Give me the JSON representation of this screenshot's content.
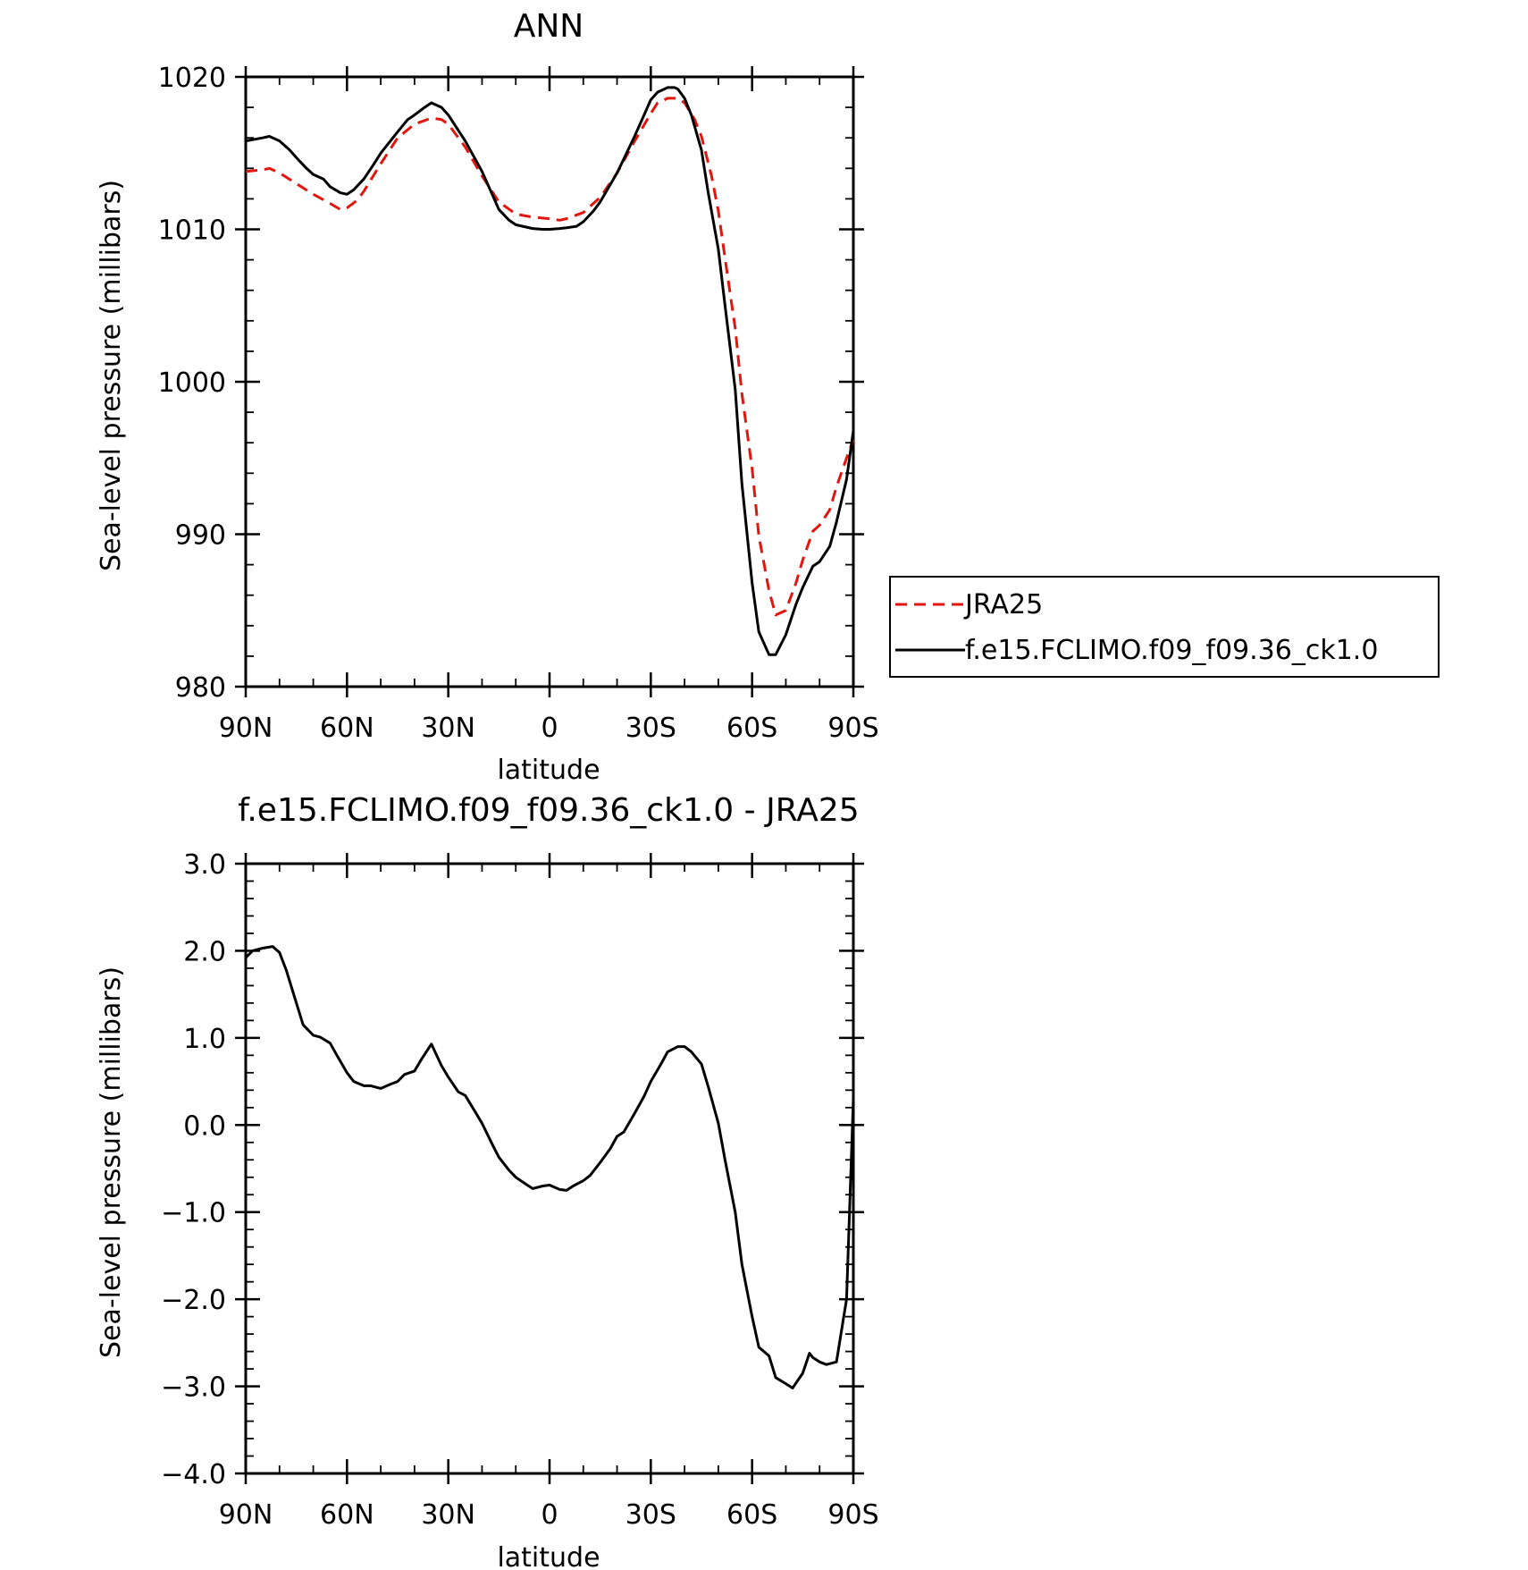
{
  "chart_data": [
    {
      "type": "line",
      "title": "ANN",
      "xlabel": "latitude",
      "ylabel": "Sea-level pressure (millibars)",
      "xlim": [
        90,
        -90
      ],
      "ylim": [
        980,
        1020
      ],
      "x_ticks": [
        {
          "value": 90,
          "label": "90N"
        },
        {
          "value": 60,
          "label": "60N"
        },
        {
          "value": 30,
          "label": "30N"
        },
        {
          "value": 0,
          "label": "0"
        },
        {
          "value": -30,
          "label": "30S"
        },
        {
          "value": -60,
          "label": "60S"
        },
        {
          "value": -90,
          "label": "90S"
        }
      ],
      "y_ticks": [
        {
          "value": 1020,
          "label": "1020"
        },
        {
          "value": 1010,
          "label": "1010"
        },
        {
          "value": 1000,
          "label": "1000"
        },
        {
          "value": 990,
          "label": "990"
        },
        {
          "value": 980,
          "label": "980"
        }
      ],
      "legend_position": "right",
      "series": [
        {
          "name": "JRA25",
          "color": "#e3150f",
          "dash": "dashed",
          "x": [
            90,
            85,
            83,
            80,
            75,
            70,
            65,
            62,
            60,
            57,
            55,
            50,
            45,
            40,
            35,
            32,
            30,
            25,
            20,
            15,
            10,
            5,
            0,
            -3,
            -5,
            -10,
            -15,
            -20,
            -25,
            -30,
            -32,
            -35,
            -38,
            -40,
            -43,
            -45,
            -48,
            -50,
            -52,
            -55,
            -57,
            -60,
            -62,
            -65,
            -67,
            -70,
            -73,
            -75,
            -78,
            -80,
            -83,
            -85,
            -88,
            -90
          ],
          "y": [
            1013.8,
            1013.9,
            1014.0,
            1013.7,
            1013.0,
            1012.3,
            1011.7,
            1011.3,
            1011.4,
            1011.9,
            1012.5,
            1014.3,
            1016.0,
            1016.9,
            1017.3,
            1017.2,
            1016.9,
            1015.4,
            1013.5,
            1011.8,
            1011.0,
            1010.8,
            1010.7,
            1010.6,
            1010.7,
            1011.1,
            1012.1,
            1013.7,
            1015.7,
            1017.6,
            1018.3,
            1018.6,
            1018.6,
            1018.3,
            1017.2,
            1016.1,
            1013.5,
            1011.2,
            1008.1,
            1003.5,
            999.2,
            994.3,
            989.9,
            986.3,
            984.7,
            985.0,
            986.8,
            988.3,
            990.2,
            990.6,
            991.6,
            993.1,
            995.0,
            996.2
          ]
        },
        {
          "name": "f.e15.FCLIMO.f09_f09.36_ck1.0",
          "color": "#000000",
          "dash": "solid",
          "x": [
            90,
            85,
            83,
            80,
            77,
            75,
            72,
            70,
            67,
            65,
            62,
            60,
            58,
            55,
            52,
            50,
            45,
            42,
            40,
            37,
            35,
            32,
            30,
            25,
            20,
            17,
            15,
            12,
            10,
            5,
            2,
            0,
            -3,
            -5,
            -8,
            -10,
            -13,
            -15,
            -20,
            -25,
            -28,
            -30,
            -32,
            -35,
            -37,
            -38,
            -40,
            -42,
            -45,
            -47,
            -50,
            -52,
            -55,
            -57,
            -60,
            -62,
            -65,
            -67,
            -70,
            -73,
            -75,
            -78,
            -80,
            -83,
            -85,
            -88,
            -90
          ],
          "y": [
            1015.8,
            1016.0,
            1016.1,
            1015.8,
            1015.2,
            1014.7,
            1014.0,
            1013.6,
            1013.3,
            1012.8,
            1012.4,
            1012.3,
            1012.6,
            1013.3,
            1014.3,
            1015.0,
            1016.4,
            1017.2,
            1017.5,
            1018.0,
            1018.3,
            1018.0,
            1017.5,
            1015.8,
            1013.8,
            1012.3,
            1011.3,
            1010.6,
            1010.3,
            1010.05,
            1010.0,
            1010.0,
            1010.05,
            1010.1,
            1010.2,
            1010.5,
            1011.2,
            1011.8,
            1013.7,
            1016.0,
            1017.5,
            1018.5,
            1019.0,
            1019.3,
            1019.3,
            1019.2,
            1018.6,
            1017.5,
            1015.2,
            1012.4,
            1008.7,
            1005.0,
            999.5,
            993.3,
            986.8,
            983.6,
            982.1,
            982.1,
            983.4,
            985.4,
            986.5,
            987.9,
            988.2,
            989.2,
            990.8,
            993.6,
            996.8
          ]
        }
      ]
    },
    {
      "type": "line",
      "title": "f.e15.FCLIMO.f09_f09.36_ck1.0 - JRA25",
      "xlabel": "latitude",
      "ylabel": "Sea-level pressure (millibars)",
      "xlim": [
        90,
        -90
      ],
      "ylim": [
        -4.0,
        3.0
      ],
      "x_ticks": [
        {
          "value": 90,
          "label": "90N"
        },
        {
          "value": 60,
          "label": "60N"
        },
        {
          "value": 30,
          "label": "30N"
        },
        {
          "value": 0,
          "label": "0"
        },
        {
          "value": -30,
          "label": "30S"
        },
        {
          "value": -60,
          "label": "60S"
        },
        {
          "value": -90,
          "label": "90S"
        }
      ],
      "y_ticks": [
        {
          "value": 3.0,
          "label": "3.0"
        },
        {
          "value": 2.0,
          "label": "2.0"
        },
        {
          "value": 1.0,
          "label": "1.0"
        },
        {
          "value": 0.0,
          "label": "0.0"
        },
        {
          "value": -1.0,
          "label": "−1.0"
        },
        {
          "value": -2.0,
          "label": "−2.0"
        },
        {
          "value": -3.0,
          "label": "−3.0"
        },
        {
          "value": -4.0,
          "label": "−4.0"
        }
      ],
      "series": [
        {
          "color": "#000000",
          "dash": "solid",
          "x": [
            90,
            88,
            85,
            82,
            80,
            78,
            75,
            73,
            70,
            68,
            65,
            63,
            60,
            58,
            55,
            53,
            50,
            47,
            45,
            43,
            40,
            38,
            35,
            32,
            30,
            27,
            25,
            22,
            20,
            17,
            15,
            12,
            10,
            7,
            5,
            2,
            0,
            -3,
            -5,
            -7,
            -10,
            -12,
            -15,
            -18,
            -20,
            -22,
            -25,
            -28,
            -30,
            -33,
            -35,
            -38,
            -40,
            -42,
            -45,
            -47,
            -50,
            -52,
            -55,
            -57,
            -60,
            -62,
            -65,
            -67,
            -70,
            -72,
            -75,
            -77,
            -78,
            -80,
            -82,
            -85,
            -88,
            -90
          ],
          "y": [
            1.92,
            2.0,
            2.03,
            2.05,
            1.98,
            1.78,
            1.4,
            1.15,
            1.03,
            1.01,
            0.94,
            0.8,
            0.6,
            0.5,
            0.45,
            0.45,
            0.42,
            0.47,
            0.5,
            0.58,
            0.62,
            0.75,
            0.93,
            0.68,
            0.55,
            0.38,
            0.34,
            0.15,
            0.02,
            -0.22,
            -0.37,
            -0.52,
            -0.6,
            -0.68,
            -0.73,
            -0.7,
            -0.69,
            -0.74,
            -0.75,
            -0.7,
            -0.64,
            -0.58,
            -0.43,
            -0.27,
            -0.13,
            -0.08,
            0.12,
            0.33,
            0.5,
            0.7,
            0.84,
            0.9,
            0.9,
            0.84,
            0.7,
            0.44,
            0.02,
            -0.4,
            -1.0,
            -1.6,
            -2.2,
            -2.55,
            -2.65,
            -2.9,
            -2.97,
            -3.02,
            -2.85,
            -2.62,
            -2.67,
            -2.72,
            -2.75,
            -2.72,
            -2.0,
            0.3
          ]
        }
      ]
    }
  ]
}
